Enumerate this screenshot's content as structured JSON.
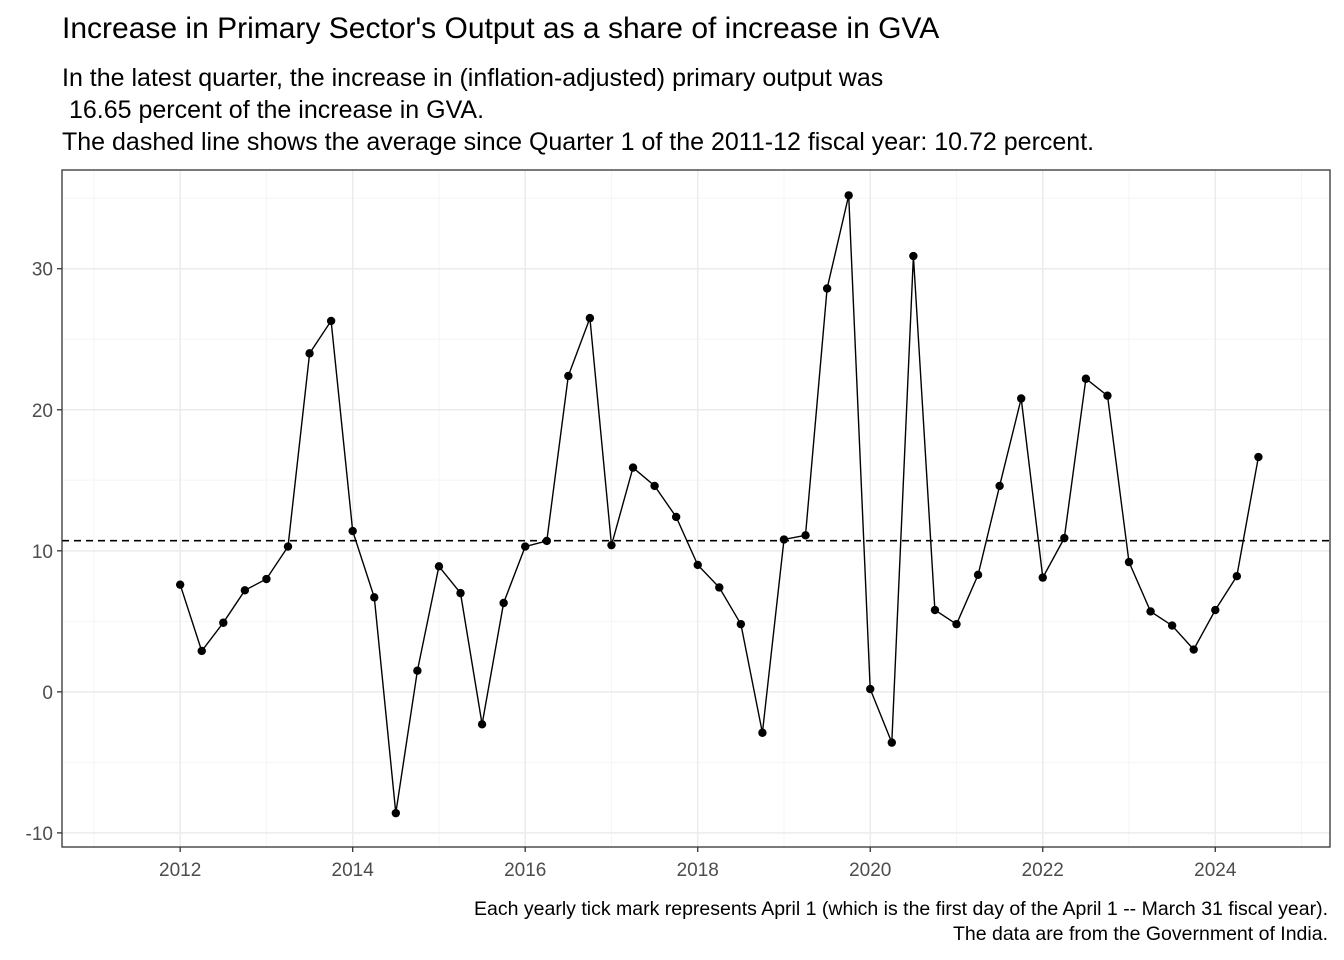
{
  "chart_data": {
    "type": "line",
    "title": "Increase in Primary Sector's Output as a share of increase in GVA",
    "subtitle_lines": [
      "In the latest quarter, the increase in (inflation-adjusted) primary output was",
      " 16.65 percent of the increase in GVA.",
      "The dashed line shows the average since Quarter 1 of the 2011-12 fiscal year: 10.72 percent."
    ],
    "caption_lines": [
      "Each yearly tick mark represents April 1 (which is the first day of the April 1 -- March 31 fiscal year).",
      "The data are from the Government of India."
    ],
    "xlabel": "",
    "ylabel": "",
    "x_ticks": [
      "2012",
      "2014",
      "2016",
      "2018",
      "2020",
      "2022",
      "2024"
    ],
    "y_ticks": [
      -10,
      0,
      10,
      20,
      30
    ],
    "xlim": [
      2010.63,
      2025.33
    ],
    "ylim": [
      -11,
      37
    ],
    "grid": true,
    "average": 10.72,
    "series": [
      {
        "x": [
          2012.0,
          2012.25,
          2012.5,
          2012.75,
          2013.0,
          2013.25,
          2013.5,
          2013.75,
          2014.0,
          2014.25,
          2014.5,
          2014.75,
          2015.0,
          2015.25,
          2015.5,
          2015.75,
          2016.0,
          2016.25,
          2016.5,
          2016.75,
          2017.0,
          2017.25,
          2017.5,
          2017.75,
          2018.0,
          2018.25,
          2018.5,
          2018.75,
          2019.0,
          2019.25,
          2019.5,
          2019.75,
          2020.0,
          2020.25,
          2020.5,
          2020.75,
          2021.0,
          2021.25,
          2021.5,
          2021.75,
          2022.0,
          2022.25,
          2022.5,
          2022.75,
          2023.0,
          2023.25,
          2023.5,
          2023.75,
          2024.0,
          2024.25,
          2024.5
        ],
        "values": [
          7.6,
          2.9,
          4.9,
          7.2,
          8.0,
          10.3,
          24.0,
          26.3,
          11.4,
          6.7,
          -8.6,
          1.5,
          8.9,
          7.0,
          -2.3,
          6.3,
          10.3,
          10.7,
          22.4,
          26.5,
          10.4,
          15.9,
          14.6,
          12.4,
          9.0,
          7.4,
          4.8,
          -2.9,
          10.8,
          11.1,
          28.6,
          35.2,
          0.2,
          -3.6,
          30.9,
          5.8,
          4.8,
          8.3,
          14.6,
          20.8,
          8.1,
          10.9,
          22.2,
          21.0,
          9.2,
          5.7,
          4.7,
          3.0,
          5.8,
          8.2,
          16.65
        ]
      }
    ]
  },
  "colors": {
    "line": "#000000",
    "panel_border": "#333333",
    "grid_major": "#ebebeb",
    "grid_minor": "#f5f5f5",
    "tick_text": "#4d4d4d"
  }
}
